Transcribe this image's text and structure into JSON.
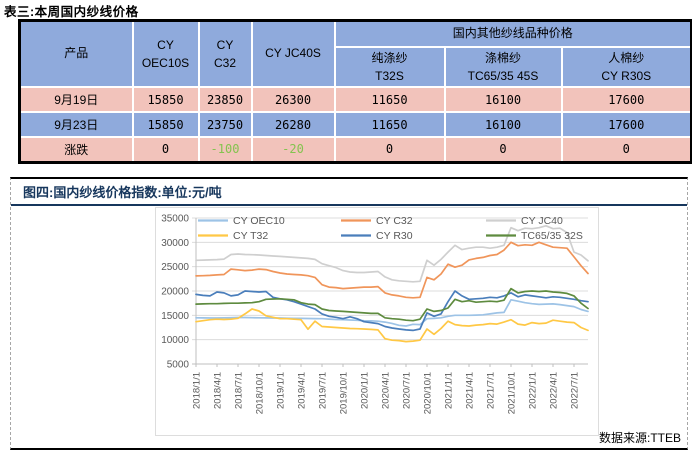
{
  "theme": {
    "row-blue": "#8FAADC",
    "row-pink": "#F2C3BB",
    "neg-green": "#84C34F",
    "title-navy": "#17375D",
    "grid": "#DCDCDC",
    "axis": "#BFBFBF",
    "label-gray": "#595959"
  },
  "table": {
    "title": "表三:本周国内纱线价格",
    "header": {
      "product": "产品",
      "cols": [
        {
          "line1": "CY",
          "line2": "OEC10S"
        },
        {
          "line1": "CY",
          "line2": "C32"
        },
        {
          "line1": "CY JC40S",
          "line2": ""
        }
      ],
      "group": "国内其他纱线品种价格",
      "sub": [
        {
          "line1": "纯涤纱",
          "line2": "T32S"
        },
        {
          "line1": "涤棉纱",
          "line2": "TC65/35 45S"
        },
        {
          "line1": "人棉纱",
          "line2": "CY R30S"
        }
      ]
    },
    "rows": [
      {
        "label": "9月19日",
        "style": "pink",
        "values": [
          "15850",
          "23850",
          "26300",
          "11650",
          "16100",
          "17600"
        ]
      },
      {
        "label": "9月23日",
        "style": "blue",
        "values": [
          "15850",
          "23750",
          "26280",
          "11650",
          "16100",
          "17600"
        ]
      },
      {
        "label": "涨跌",
        "style": "pink",
        "values": [
          "0",
          "-100",
          "-20",
          "0",
          "0",
          "0"
        ]
      }
    ]
  },
  "figure": {
    "title": "图四:国内纱线价格指数:单位:元/吨",
    "source": "数据来源:TTEB"
  },
  "chart_data": {
    "type": "line",
    "title": "国内纱线价格指数",
    "unit": "元/吨",
    "grid": true,
    "legend_position": "top-inside",
    "ylim": [
      5000,
      35000
    ],
    "y_ticks": [
      35000,
      30000,
      25000,
      20000,
      15000,
      10000,
      5000
    ],
    "months_total": 57,
    "x_start": "2018/1",
    "x_end": "2022/9",
    "x_tick_step": 3,
    "x_ticks": [
      "2018/1/1",
      "2018/4/1",
      "2018/7/1",
      "2018/10/1",
      "2019/1/1",
      "2019/4/1",
      "2019/7/1",
      "2019/10/1",
      "2020/1/1",
      "2020/4/1",
      "2020/7/1",
      "2020/10/1",
      "2021/1/1",
      "2021/4/1",
      "2021/7/1",
      "2021/10/1",
      "2022/1/1",
      "2022/4/1",
      "2022/7/1"
    ],
    "series": [
      {
        "name": "CY OEC10",
        "color": "#9DC3E6",
        "values": [
          14500,
          14480,
          14450,
          14450,
          14500,
          14520,
          14550,
          14550,
          14520,
          14500,
          14480,
          14450,
          14450,
          14420,
          14400,
          14380,
          14350,
          14320,
          14300,
          14220,
          14150,
          14100,
          14050,
          13980,
          13900,
          13850,
          13800,
          13600,
          13350,
          12950,
          12800,
          13150,
          13100,
          14300,
          14380,
          14500,
          14800,
          15000,
          15000,
          15000,
          15050,
          15100,
          15300,
          15500,
          15600,
          18200,
          17900,
          17600,
          17400,
          17250,
          17300,
          17350,
          17200,
          17000,
          16800,
          16200,
          15800
        ]
      },
      {
        "name": "CY C32",
        "color": "#F0955A",
        "values": [
          23100,
          23150,
          23200,
          23300,
          23400,
          24500,
          24350,
          24200,
          24300,
          24500,
          24400,
          24000,
          23700,
          23500,
          23400,
          23300,
          23150,
          22800,
          21300,
          20800,
          20700,
          20500,
          20600,
          20700,
          20800,
          20800,
          20900,
          19600,
          19200,
          19000,
          18700,
          18600,
          18700,
          22800,
          22300,
          23500,
          25500,
          24900,
          25300,
          26400,
          26700,
          26900,
          27300,
          27500,
          28400,
          30000,
          29300,
          29500,
          29400,
          30000,
          29500,
          29000,
          28900,
          28800,
          27000,
          25200,
          23600
        ]
      },
      {
        "name": "CY JC40",
        "color": "#CFCFCF",
        "values": [
          26300,
          26350,
          26400,
          26450,
          26550,
          27500,
          27600,
          27500,
          27450,
          27400,
          27300,
          27200,
          27100,
          27000,
          26900,
          26800,
          26700,
          26500,
          25600,
          25200,
          24800,
          24200,
          23900,
          23800,
          23800,
          23900,
          24000,
          22900,
          22300,
          22100,
          22000,
          21900,
          22000,
          26300,
          25300,
          26500,
          28000,
          29400,
          28500,
          28800,
          29000,
          29000,
          28800,
          29000,
          29400,
          33000,
          32400,
          32900,
          32800,
          33000,
          33400,
          32800,
          32900,
          32000,
          28000,
          27400,
          26200
        ]
      },
      {
        "name": "CY T32",
        "color": "#FFC845",
        "values": [
          13700,
          13900,
          14100,
          14200,
          14150,
          14200,
          14400,
          15300,
          16300,
          15900,
          14900,
          14600,
          14300,
          14300,
          14200,
          14100,
          12150,
          13800,
          12700,
          12600,
          12500,
          12400,
          12300,
          12250,
          12200,
          12100,
          12000,
          10200,
          9900,
          9800,
          9600,
          9700,
          9900,
          12200,
          11100,
          12300,
          13800,
          13100,
          12900,
          12800,
          13000,
          13100,
          13300,
          13200,
          13600,
          14100,
          13200,
          13000,
          13500,
          13300,
          13400,
          14000,
          13800,
          13600,
          13500,
          12500,
          11900
        ]
      },
      {
        "name": "CY R30",
        "color": "#4A7EBB",
        "values": [
          19300,
          19100,
          19000,
          19800,
          19600,
          19000,
          19200,
          20000,
          19900,
          19800,
          19900,
          18700,
          18400,
          18200,
          17800,
          17300,
          16800,
          16300,
          15300,
          14800,
          14600,
          14300,
          14700,
          14300,
          13700,
          13500,
          13300,
          12700,
          12400,
          12200,
          12000,
          11900,
          12200,
          15500,
          14800,
          15300,
          17800,
          20000,
          19000,
          18300,
          18400,
          18500,
          18700,
          18600,
          19000,
          19600,
          18800,
          19200,
          19000,
          18800,
          18600,
          18800,
          18700,
          18500,
          18300,
          18000,
          17800
        ]
      },
      {
        "name": "TC65/35 32S",
        "color": "#5E8B3F",
        "values": [
          17300,
          17350,
          17400,
          17400,
          17450,
          17500,
          17500,
          17550,
          17600,
          17800,
          18300,
          18350,
          18400,
          18300,
          18200,
          17600,
          17300,
          17200,
          16300,
          16000,
          15900,
          15800,
          15700,
          15600,
          15500,
          15400,
          15400,
          14500,
          14300,
          14200,
          14000,
          13900,
          14200,
          16300,
          15800,
          16000,
          16500,
          18300,
          17800,
          18000,
          17700,
          17800,
          17900,
          17800,
          18100,
          20500,
          19600,
          19900,
          20000,
          19900,
          20000,
          19800,
          19700,
          19500,
          19000,
          17500,
          16400
        ]
      }
    ]
  }
}
